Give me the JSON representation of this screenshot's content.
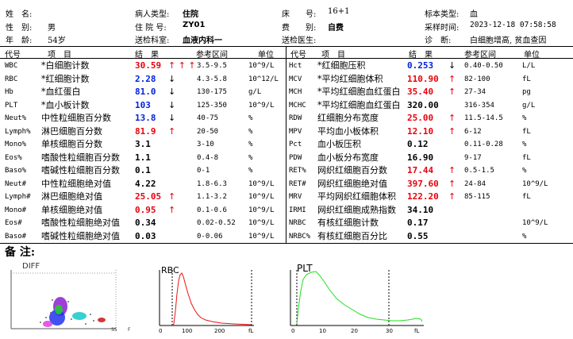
{
  "header": {
    "name_label": "姓　名:",
    "name_value": "",
    "sex_label": "性　别:",
    "sex_value": "男",
    "age_label": "年　龄:",
    "age_value": "54岁",
    "patient_type_label": "病人类型:",
    "patient_type_value": "住院",
    "inpatient_no_label": "住 院 号:",
    "inpatient_no_value": "ZY01",
    "dept_label": "送检科室:",
    "dept_value": "血液内科一",
    "bed_label": "床　　号:",
    "bed_value": "16+1",
    "fee_label": "费　　别:",
    "fee_value": "自费",
    "doctor_label": "送检医生:",
    "doctor_value": "",
    "sample_type_label": "标本类型:",
    "sample_type_value": "血",
    "sample_time_label": "采样时间:",
    "sample_time_value": "2023-12-18 07:58:58",
    "diagnosis_label": "诊　断:",
    "diagnosis_value": "白细胞增高, 贫血查因"
  },
  "table_headers": {
    "code": "代号",
    "item": "项　目",
    "result": "结　果",
    "ref": "参考区间",
    "unit": "单位"
  },
  "left_rows": [
    {
      "code": "WBC",
      "name": "*白细胞计数",
      "result": "30.59",
      "color": "red",
      "flag": "↑ ↑ ↑",
      "ref": "3.5-9.5",
      "unit": "10^9/L"
    },
    {
      "code": "RBC",
      "name": "*红细胞计数",
      "result": "2.28",
      "color": "blue",
      "flag": "↓",
      "ref": "4.3-5.8",
      "unit": "10^12/L"
    },
    {
      "code": "Hb",
      "name": "*血红蛋白",
      "result": "81.0",
      "color": "blue",
      "flag": "↓",
      "ref": "130-175",
      "unit": "g/L"
    },
    {
      "code": "PLT",
      "name": "*血小板计数",
      "result": "103",
      "color": "blue",
      "flag": "↓",
      "ref": "125-350",
      "unit": "10^9/L"
    },
    {
      "code": "Neut%",
      "name": "中性粒细胞百分数",
      "result": "13.8",
      "color": "blue",
      "flag": "↓",
      "ref": "40-75",
      "unit": "%"
    },
    {
      "code": "Lymph%",
      "name": "淋巴细胞百分数",
      "result": "81.9",
      "color": "red",
      "flag": "↑",
      "ref": "20-50",
      "unit": "%"
    },
    {
      "code": "Mono%",
      "name": "单核细胞百分数",
      "result": "3.1",
      "color": "black",
      "flag": "",
      "ref": "3-10",
      "unit": "%"
    },
    {
      "code": "Eos%",
      "name": "嗜酸性粒细胞百分数",
      "result": "1.1",
      "color": "black",
      "flag": "",
      "ref": "0.4-8",
      "unit": "%"
    },
    {
      "code": "Baso%",
      "name": "嗜碱性粒细胞百分数",
      "result": "0.1",
      "color": "black",
      "flag": "",
      "ref": "0-1",
      "unit": "%"
    },
    {
      "code": "Neut#",
      "name": "中性粒细胞绝对值",
      "result": "4.22",
      "color": "black",
      "flag": "",
      "ref": "1.8-6.3",
      "unit": "10^9/L"
    },
    {
      "code": "Lymph#",
      "name": "淋巴细胞绝对值",
      "result": "25.05",
      "color": "red",
      "flag": "↑",
      "ref": "1.1-3.2",
      "unit": "10^9/L"
    },
    {
      "code": "Mono#",
      "name": "单核细胞绝对值",
      "result": "0.95",
      "color": "red",
      "flag": "↑",
      "ref": "0.1-0.6",
      "unit": "10^9/L"
    },
    {
      "code": "Eos#",
      "name": "嗜酸性粒细胞绝对值",
      "result": "0.34",
      "color": "black",
      "flag": "",
      "ref": "0.02-0.52",
      "unit": "10^9/L"
    },
    {
      "code": "Baso#",
      "name": "嗜碱性粒细胞绝对值",
      "result": "0.03",
      "color": "black",
      "flag": "",
      "ref": "0-0.06",
      "unit": "10^9/L"
    }
  ],
  "right_rows": [
    {
      "code": "Hct",
      "name": "*红细胞压积",
      "result": "0.253",
      "color": "blue",
      "flag": "↓",
      "ref": "0.40-0.50",
      "unit": "L/L"
    },
    {
      "code": "MCV",
      "name": "*平均红细胞体积",
      "result": "110.90",
      "color": "red",
      "flag": "↑",
      "ref": "82-100",
      "unit": "fL"
    },
    {
      "code": "MCH",
      "name": "*平均红细胞血红蛋白",
      "result": "35.40",
      "color": "red",
      "flag": "↑",
      "ref": "27-34",
      "unit": "pg"
    },
    {
      "code": "MCHC",
      "name": "*平均红细胞血红蛋白",
      "result": "320.00",
      "color": "black",
      "flag": "",
      "ref": "316-354",
      "unit": "g/L"
    },
    {
      "code": "RDW",
      "name": "红细胞分布宽度",
      "result": "25.00",
      "color": "red",
      "flag": "↑",
      "ref": "11.5-14.5",
      "unit": "%"
    },
    {
      "code": "MPV",
      "name": "平均血小板体积",
      "result": "12.10",
      "color": "red",
      "flag": "↑",
      "ref": "6-12",
      "unit": "fL"
    },
    {
      "code": "Pct",
      "name": "血小板压积",
      "result": "0.12",
      "color": "black",
      "flag": "",
      "ref": "0.11-0.28",
      "unit": "%"
    },
    {
      "code": "PDW",
      "name": "血小板分布宽度",
      "result": "16.90",
      "color": "black",
      "flag": "",
      "ref": "9-17",
      "unit": "fL"
    },
    {
      "code": "RET%",
      "name": "网织红细胞百分数",
      "result": "17.44",
      "color": "red",
      "flag": "↑",
      "ref": "0.5-1.5",
      "unit": "%"
    },
    {
      "code": "RET#",
      "name": "网织红细胞绝对值",
      "result": "397.60",
      "color": "red",
      "flag": "↑",
      "ref": "24-84",
      "unit": "10^9/L"
    },
    {
      "code": "MRV",
      "name": "平均网织红细胞体积",
      "result": "122.20",
      "color": "red",
      "flag": "↑",
      "ref": "85-115",
      "unit": "fL"
    },
    {
      "code": "IRMI",
      "name": "网织红细胞成熟指数",
      "result": "34.10",
      "color": "black",
      "flag": "",
      "ref": "",
      "unit": ""
    },
    {
      "code": "NRBC",
      "name": "有核红细胞计数",
      "result": "0.17",
      "color": "black",
      "flag": "",
      "ref": "",
      "unit": "10^9/L"
    },
    {
      "code": "NRBC%",
      "name": "有核红细胞百分比",
      "result": "0.55",
      "color": "black",
      "flag": "",
      "ref": "",
      "unit": "%"
    }
  ],
  "remarks_label": "备 注:",
  "graphs": {
    "diff_label": "DIFF",
    "diff_axis_label": "SS",
    "diff_axis_right": "F",
    "rbc_label": "RBC",
    "rbc_ticks": [
      "0",
      "100",
      "200",
      "fL"
    ],
    "plt_label": "PLT",
    "plt_ticks": [
      "0",
      "10",
      "20",
      "30",
      "fL"
    ],
    "rbc_color": "#ee1111",
    "plt_color": "#22dd22"
  },
  "colors": {
    "red": "#e8000b",
    "blue": "#0022dd",
    "black": "#000000"
  }
}
